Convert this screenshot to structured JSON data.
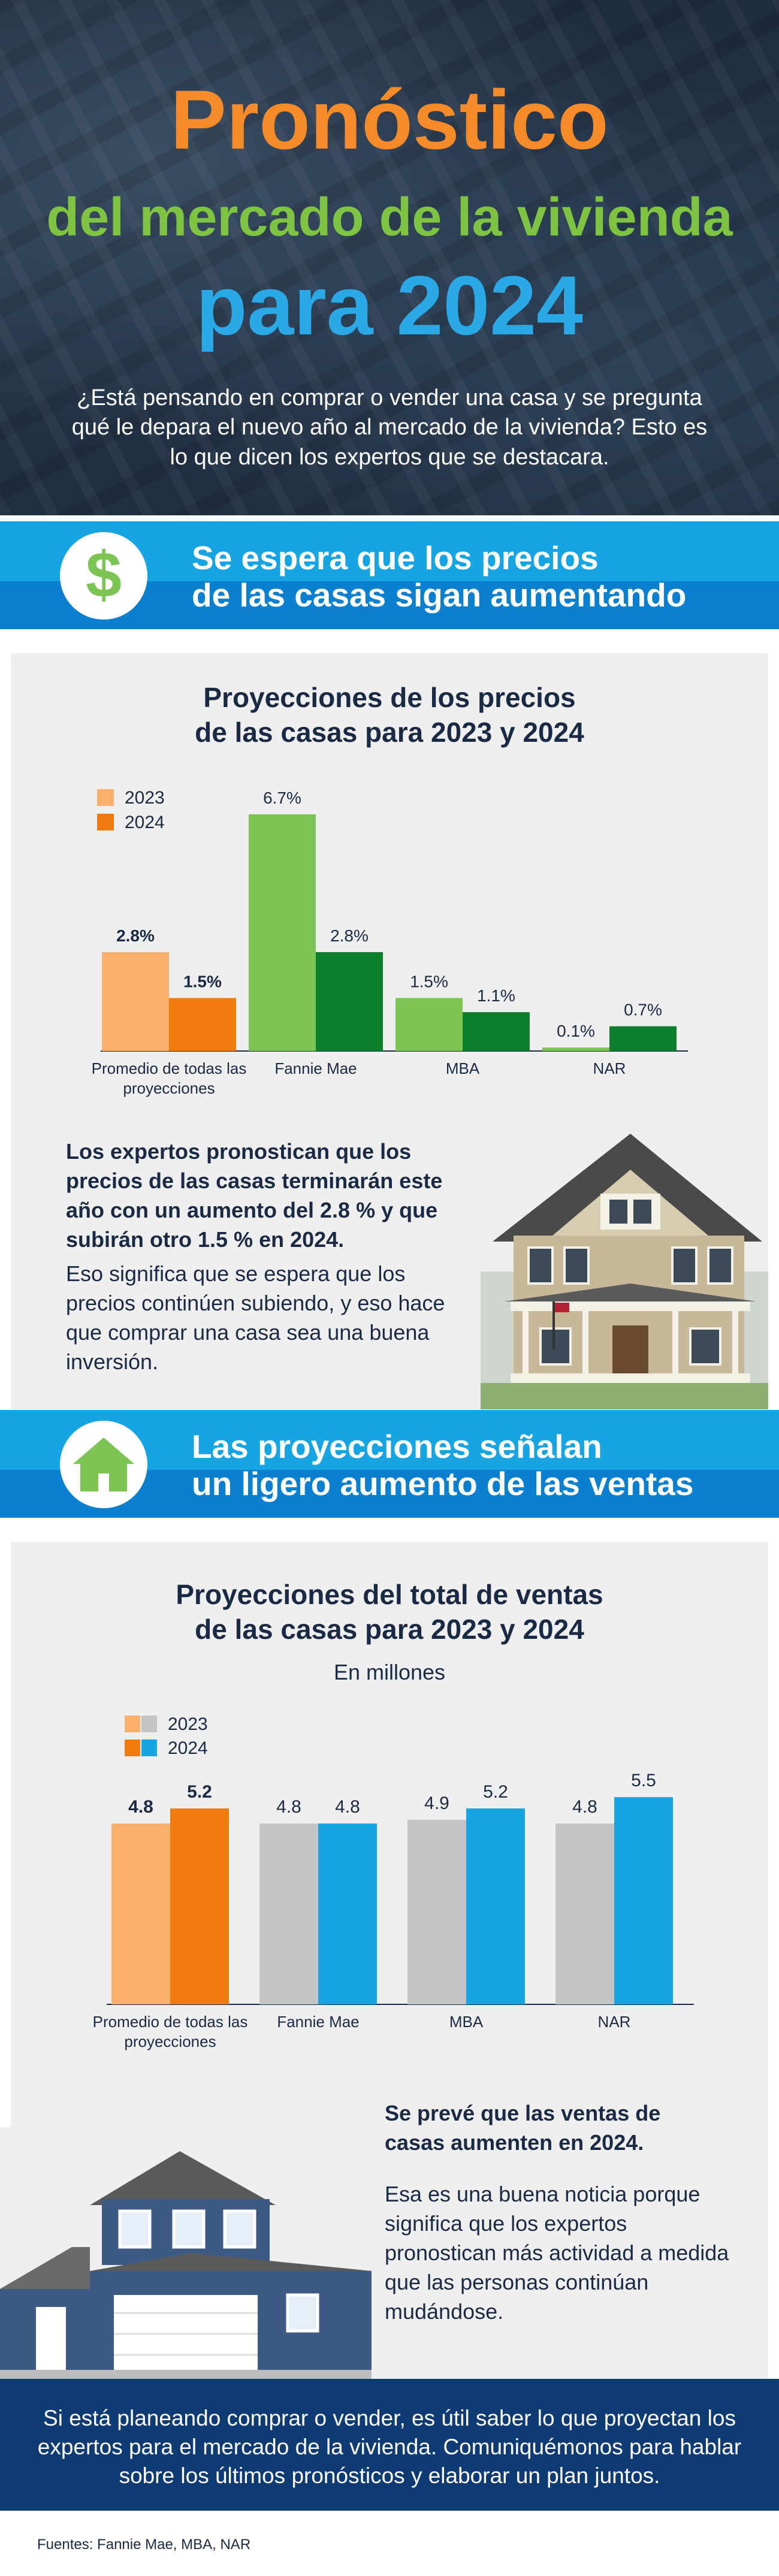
{
  "hero": {
    "title_line1": "Pronóstico",
    "title_line2": "del mercado de la vivienda",
    "title_line3": "para 2024",
    "intro": "¿Está pensando en comprar o vender una casa y se pregunta qué le depara el nuevo año al mercado de la vivienda? Esto es lo que dicen los expertos que se destacara."
  },
  "section1": {
    "icon": "dollar-icon",
    "title_line1": "Se espera que los precios",
    "title_line2": "de las casas sigan aumentando",
    "note_bold": "Los expertos pronostican que los precios de las casas terminarán este año con un aumento del 2.8 % y que subirán otro 1.5 % en 2024.",
    "note": "Eso significa que se espera que los precios continúen subiendo, y eso hace que comprar una casa sea una buena inversión."
  },
  "section2": {
    "icon": "house-icon",
    "title_line1": "Las proyecciones señalan",
    "title_line2": "un ligero aumento de las ventas",
    "note_bold": "Se prevé que las ventas de casas aumenten en 2024.",
    "note": "Esa es una buena noticia porque significa que los expertos pronostican más actividad a medida que las personas continúan mudándose."
  },
  "chart_data": [
    {
      "type": "bar",
      "title_line1": "Proyecciones de los precios",
      "title_line2": "de las casas para 2023 y 2024",
      "categories": [
        "Promedio de todas las proyecciones",
        "Fannie Mae",
        "MBA",
        "NAR"
      ],
      "series": [
        {
          "name": "2023",
          "values": [
            2.8,
            6.7,
            1.5,
            0.1
          ],
          "labels": [
            "2.8%",
            "6.7%",
            "1.5%",
            "0.1%"
          ],
          "bold": [
            true,
            false,
            false,
            false
          ]
        },
        {
          "name": "2024",
          "values": [
            1.5,
            2.8,
            1.1,
            0.7
          ],
          "labels": [
            "1.5%",
            "2.8%",
            "1.1%",
            "0.7%"
          ],
          "bold": [
            true,
            false,
            false,
            false
          ]
        }
      ],
      "legend_position": "top-left",
      "grid": false,
      "colors": {
        "2023_first": "#f9b06a",
        "2024_first": "#f27b0f",
        "2023_others": "#7cc555",
        "2024_others": "#0d7f2c"
      },
      "ylim": [
        0,
        7
      ]
    },
    {
      "type": "bar",
      "title_line1": "Proyecciones del total de ventas",
      "title_line2": "de las casas para 2023 y 2024",
      "subtitle": "En millones",
      "categories": [
        "Promedio de todas las proyecciones",
        "Fannie Mae",
        "MBA",
        "NAR"
      ],
      "series": [
        {
          "name": "2023",
          "values": [
            4.8,
            4.8,
            4.9,
            4.8
          ],
          "labels": [
            "4.8",
            "4.8",
            "4.9",
            "4.8"
          ],
          "bold": [
            true,
            false,
            false,
            false
          ]
        },
        {
          "name": "2024",
          "values": [
            5.2,
            4.8,
            5.2,
            5.5
          ],
          "labels": [
            "5.2",
            "4.8",
            "5.2",
            "5.5"
          ],
          "bold": [
            true,
            false,
            false,
            false
          ]
        }
      ],
      "legend_position": "top-left",
      "grid": false,
      "colors": {
        "2023_first": "#f9b06a",
        "2024_first": "#f27b0f",
        "2023_others": "#c4c4c4",
        "2024_others": "#17a4e2"
      },
      "ylim": [
        0,
        5.5
      ]
    }
  ],
  "footer": {
    "text": "Si está planeando comprar o vender, es útil saber lo que proyectan los expertos para el mercado de la vivienda. Comuniquémonos para hablar sobre los últimos pronósticos y elaborar un plan juntos.",
    "sources": "Fuentes: Fannie Mae, MBA, NAR"
  },
  "colors": {
    "orange": "#f58a28",
    "green": "#7ec342",
    "blue": "#2aa9e6",
    "band_light": "#17a4e2",
    "band_dark": "#0b7fd0",
    "footer_bg": "#0f3b75"
  }
}
